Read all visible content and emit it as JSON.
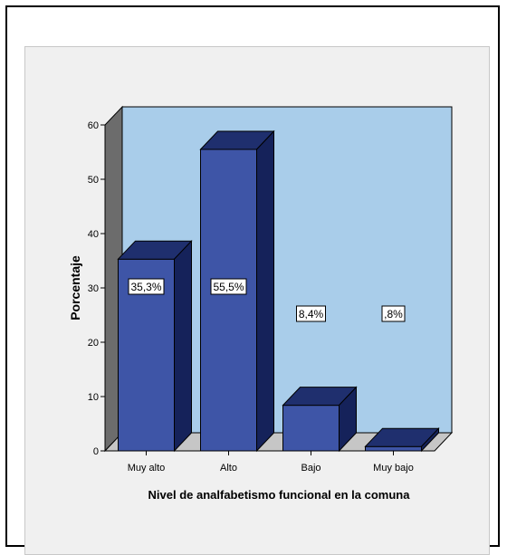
{
  "chart_data": {
    "type": "bar",
    "categories": [
      "Muy alto",
      "Alto",
      "Bajo",
      "Muy bajo"
    ],
    "values": [
      35.3,
      55.5,
      8.4,
      0.8
    ],
    "data_labels": [
      "35,3%",
      "55,5%",
      "8,4%",
      ",8%"
    ],
    "xlabel": "Nivel de analfabetismo funcional en la comuna",
    "ylabel": "Porcentaje",
    "ylim": [
      0,
      60
    ],
    "yticks": [
      0,
      10,
      20,
      30,
      40,
      50,
      60
    ],
    "ytick_labels": [
      "0",
      "10",
      "20",
      "30",
      "40",
      "50",
      "60"
    ],
    "grid": false,
    "three_d": true
  },
  "colors": {
    "wall": "#a9cdea",
    "floor": "#c6c6c6",
    "side_wall": "#6c6c6c",
    "bar_front": "#3e55a7",
    "bar_top": "#1f2f6e",
    "bar_side": "#15225a",
    "page_bg": "#f0f0f0"
  }
}
